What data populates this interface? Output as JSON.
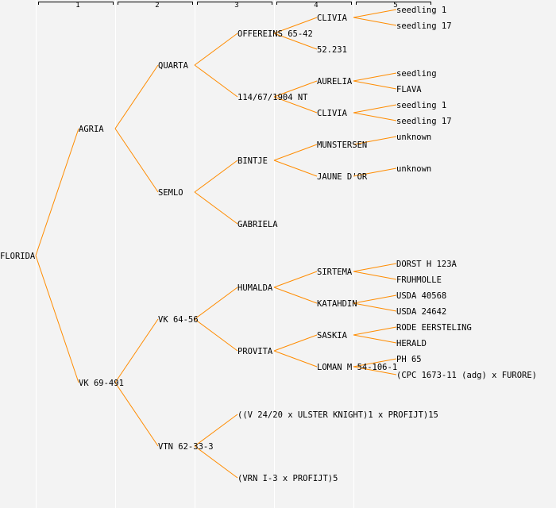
{
  "columns": [
    "1",
    "2",
    "3",
    "4",
    "5"
  ],
  "colors": {
    "background": "#f3f3f3",
    "link": "#ff8c00",
    "column_divider": "#ffffff",
    "text": "#000000"
  },
  "tree": {
    "label": "FLORIDA",
    "children": [
      {
        "label": "AGRIA",
        "children": [
          {
            "label": "QUARTA",
            "children": [
              {
                "label": "OFFEREINS 65-42",
                "children": [
                  {
                    "label": "CLIVIA",
                    "children": [
                      {
                        "label": "seedling 1"
                      },
                      {
                        "label": "seedling 17"
                      }
                    ]
                  },
                  {
                    "label": "52.231"
                  }
                ]
              },
              {
                "label": "114/67/1904 NT",
                "children": [
                  {
                    "label": "AURELIA",
                    "children": [
                      {
                        "label": "seedling"
                      },
                      {
                        "label": "FLAVA"
                      }
                    ]
                  },
                  {
                    "label": "CLIVIA",
                    "children": [
                      {
                        "label": "seedling 1"
                      },
                      {
                        "label": "seedling 17"
                      }
                    ]
                  }
                ]
              }
            ]
          },
          {
            "label": "SEMLO",
            "children": [
              {
                "label": "BINTJE",
                "children": [
                  {
                    "label": "MUNSTERSEN",
                    "children": [
                      {
                        "label": "unknown"
                      },
                      null
                    ]
                  },
                  {
                    "label": "JAUNE D'OR",
                    "children": [
                      {
                        "label": "unknown"
                      },
                      null
                    ]
                  }
                ]
              },
              {
                "label": "GABRIELA"
              }
            ]
          }
        ]
      },
      {
        "label": "VK 69-491",
        "children": [
          {
            "label": "VK 64-56",
            "children": [
              {
                "label": "HUMALDA",
                "children": [
                  {
                    "label": "SIRTEMA",
                    "children": [
                      {
                        "label": "DORST H 123A"
                      },
                      {
                        "label": "FRUHMOLLE"
                      }
                    ]
                  },
                  {
                    "label": "KATAHDIN",
                    "children": [
                      {
                        "label": "USDA 40568"
                      },
                      {
                        "label": "USDA 24642"
                      }
                    ]
                  }
                ]
              },
              {
                "label": "PROVITA",
                "children": [
                  {
                    "label": "SASKIA",
                    "children": [
                      {
                        "label": "RODE EERSTELING"
                      },
                      {
                        "label": "HERALD"
                      }
                    ]
                  },
                  {
                    "label": "LOMAN M 54-106-1",
                    "children": [
                      {
                        "label": "PH 65"
                      },
                      {
                        "label": "(CPC 1673-11 (adg) x FURORE)"
                      }
                    ]
                  }
                ]
              }
            ]
          },
          {
            "label": "VTN 62-33-3",
            "children": [
              {
                "label": "((V 24/20 x ULSTER KNIGHT)1 x PROFIJT)15"
              },
              {
                "label": "(VRN I-3 x PROFIJT)5"
              }
            ]
          }
        ]
      }
    ]
  }
}
